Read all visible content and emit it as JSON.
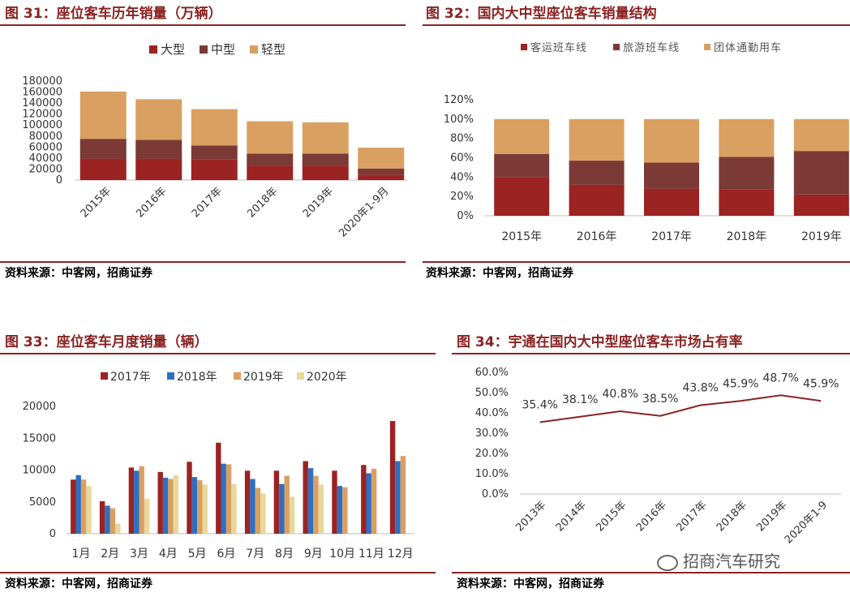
{
  "colors": {
    "dark_red": "#9b2322",
    "brown": "#7b3a36",
    "tan": "#d9a062",
    "blue": "#2e6fc2",
    "cream": "#e9d89b",
    "accent": "#8b2323",
    "axis": "#bfbfbf"
  },
  "panels": [
    {
      "title": "图 31：座位客车历年销量（万辆）",
      "source": "资料来源：中客网，招商证券"
    },
    {
      "title": "图 32：国内大中型座位客车销量结构",
      "source": "资料来源：中客网，招商证券"
    },
    {
      "title": "图 33：座位客车月度销量（辆）",
      "source": "资料来源：中客网，招商证券"
    },
    {
      "title": "图 34：宇通在国内大中型座位客车市场占有率",
      "source": "资料来源：中客网，招商证券"
    }
  ],
  "watermark": {
    "icon": "wechat-icon",
    "text": "招商汽车研究"
  },
  "chart_data": [
    {
      "type": "bar",
      "stacked": true,
      "categories": [
        "2015年",
        "2016年",
        "2017年",
        "2018年",
        "2019年",
        "2020年1-9月"
      ],
      "series": [
        {
          "name": "大型",
          "values": [
            39000,
            39000,
            38000,
            26000,
            26000,
            10000
          ]
        },
        {
          "name": "中型",
          "values": [
            36000,
            34000,
            25000,
            22000,
            22000,
            11000
          ]
        },
        {
          "name": "轻型",
          "values": [
            86000,
            74000,
            66000,
            59000,
            57000,
            38000
          ]
        }
      ],
      "ylim": [
        0,
        180000
      ],
      "yticks": [
        "180000",
        "160000",
        "140000",
        "120000",
        "100000",
        "80000",
        "60000",
        "40000",
        "20000",
        "0"
      ],
      "legend": "top"
    },
    {
      "type": "bar",
      "stacked": true,
      "percent": true,
      "categories": [
        "2015年",
        "2016年",
        "2017年",
        "2018年",
        "2019年"
      ],
      "series": [
        {
          "name": "客运班车线",
          "values": [
            40,
            32,
            28,
            27,
            22
          ]
        },
        {
          "name": "旅游班车线",
          "values": [
            24,
            25,
            27,
            34,
            45
          ]
        },
        {
          "name": "团体通勤用车",
          "values": [
            36,
            43,
            45,
            39,
            33
          ]
        }
      ],
      "ylim": [
        0,
        120
      ],
      "yticks": [
        "120%",
        "100%",
        "80%",
        "60%",
        "40%",
        "20%",
        "0%"
      ],
      "legend": "top"
    },
    {
      "type": "bar",
      "categories": [
        "1月",
        "2月",
        "3月",
        "4月",
        "5月",
        "6月",
        "7月",
        "8月",
        "9月",
        "10月",
        "11月",
        "12月"
      ],
      "series": [
        {
          "name": "2017年",
          "values": [
            8500,
            5100,
            10400,
            9700,
            11300,
            14300,
            9900,
            9900,
            11400,
            9900,
            10800,
            17700
          ]
        },
        {
          "name": "2018年",
          "values": [
            9200,
            4400,
            9900,
            8800,
            8900,
            11000,
            8600,
            7800,
            10300,
            7500,
            9500,
            11400
          ]
        },
        {
          "name": "2019年",
          "values": [
            8500,
            4000,
            10600,
            8600,
            8400,
            10900,
            7200,
            9100,
            9100,
            7300,
            10200,
            12200
          ]
        },
        {
          "name": "2020年",
          "values": [
            7500,
            1600,
            5500,
            9200,
            7700,
            7800,
            6300,
            5800,
            7700,
            null,
            null,
            null
          ]
        }
      ],
      "ylim": [
        0,
        20000
      ],
      "yticks": [
        "20000",
        "15000",
        "10000",
        "5000",
        "0"
      ],
      "legend": "top"
    },
    {
      "type": "line",
      "x": [
        "2013年",
        "2014年",
        "2015年",
        "2016年",
        "2017年",
        "2018年",
        "2019年",
        "2020年1-9"
      ],
      "values": [
        35.4,
        38.1,
        40.8,
        38.5,
        43.8,
        45.9,
        48.7,
        45.9
      ],
      "labels": [
        "35.4%",
        "38.1%",
        "40.8%",
        "38.5%",
        "43.8%",
        "45.9%",
        "48.7%",
        "45.9%"
      ],
      "ylim": [
        0,
        60
      ],
      "yticks": [
        "60.0%",
        "50.0%",
        "40.0%",
        "30.0%",
        "20.0%",
        "10.0%",
        "0.0%"
      ]
    }
  ]
}
